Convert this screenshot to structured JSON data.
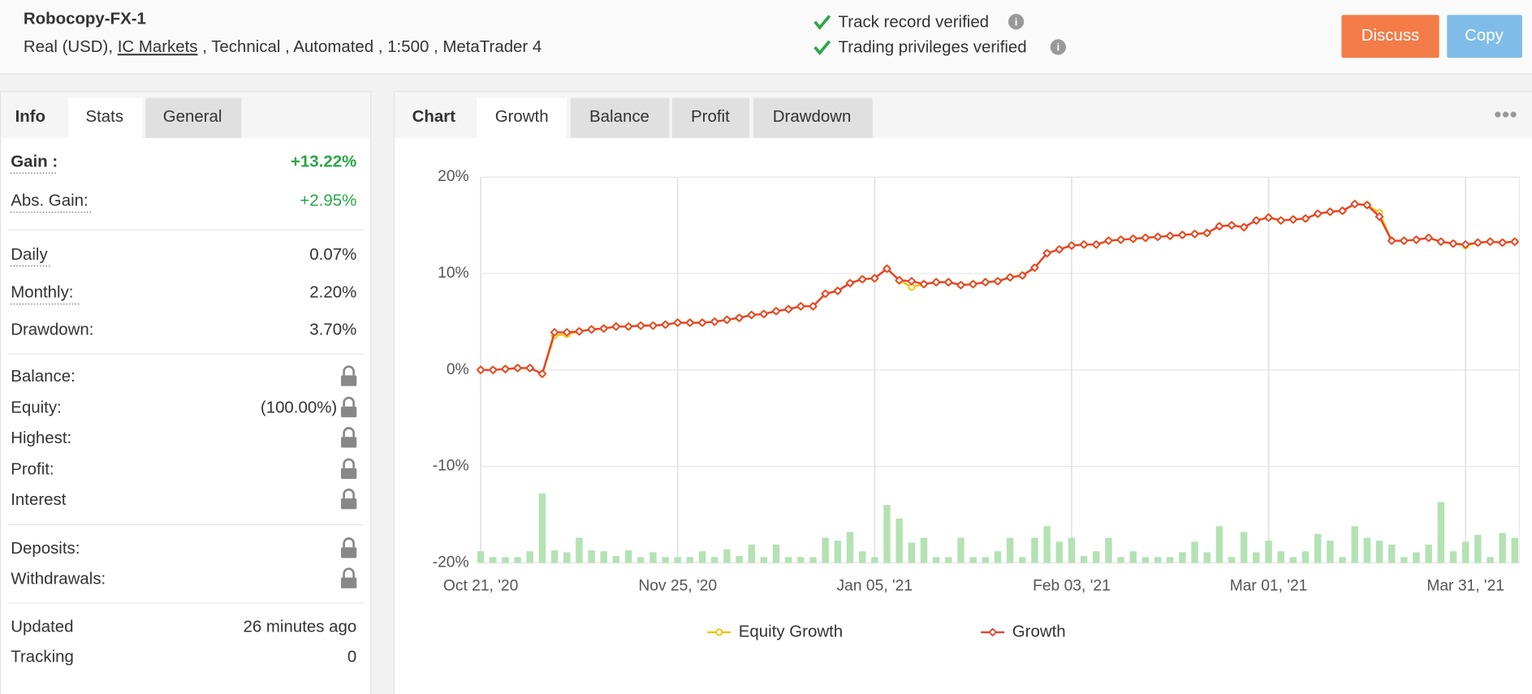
{
  "header": {
    "title": "Robocopy-FX-1",
    "account": "Real (USD),",
    "broker": "IC Markets",
    "details": ", Technical , Automated , 1:500 , MetaTrader 4",
    "verified": [
      "Track record verified",
      "Trading privileges verified"
    ],
    "buttons": [
      "Discuss",
      "Copy"
    ]
  },
  "stats": {
    "tabs": [
      "Info",
      "Stats",
      "General"
    ],
    "rows": [
      {
        "label": "Gain :",
        "value": "+13.22%"
      },
      {
        "label": "Abs. Gain:",
        "value": "+2.95%"
      },
      {
        "label": "Daily",
        "value": "0.07%"
      },
      {
        "label": "Monthly:",
        "value": "2.20%"
      },
      {
        "label": "Drawdown:",
        "value": "3.70%"
      },
      {
        "label": "Balance:",
        "locked": true
      },
      {
        "label": "Equity:",
        "value": "(100.00%)",
        "locked": true
      },
      {
        "label": "Highest:",
        "locked": true
      },
      {
        "label": "Profit:",
        "locked": true
      },
      {
        "label": "Interest",
        "locked": true
      },
      {
        "label": "Deposits:",
        "locked": true
      },
      {
        "label": "Withdrawals:",
        "locked": true
      },
      {
        "label": "Updated",
        "value": "26 minutes ago"
      },
      {
        "label": "Tracking",
        "value": "0"
      }
    ]
  },
  "chart_tabs": [
    "Chart",
    "Growth",
    "Balance",
    "Profit",
    "Drawdown"
  ],
  "chart_data": {
    "type": "line",
    "categories": [
      "Oct 21, '20",
      null,
      null,
      null,
      null,
      null,
      null,
      null,
      null,
      null,
      null,
      null,
      null,
      null,
      null,
      null,
      "Nov 25, '20",
      null,
      null,
      null,
      null,
      null,
      null,
      null,
      null,
      null,
      null,
      null,
      null,
      null,
      null,
      null,
      "Jan 05, '21",
      null,
      null,
      null,
      null,
      null,
      null,
      null,
      null,
      null,
      null,
      null,
      null,
      null,
      null,
      null,
      "Feb 03, '21",
      null,
      null,
      null,
      null,
      null,
      null,
      null,
      null,
      null,
      null,
      null,
      null,
      null,
      null,
      null,
      "Mar 01, '21",
      null,
      null,
      null,
      null,
      null,
      null,
      null,
      null,
      null,
      null,
      null,
      null,
      null,
      null,
      null,
      "Mar 31, '21",
      null,
      null,
      null,
      null
    ],
    "ylim": [
      -20,
      20
    ],
    "yticks": [
      {
        "value": -20,
        "label": "-20%"
      },
      {
        "value": -10,
        "label": "-10%"
      },
      {
        "value": 0,
        "label": "0%"
      },
      {
        "value": 10,
        "label": "10%"
      },
      {
        "value": 20,
        "label": "20%"
      }
    ],
    "grid": true,
    "series": [
      {
        "name": "Equity Growth",
        "color": "#f2c200",
        "values": [
          0,
          0,
          0.1,
          0.2,
          0.2,
          -0.4,
          3.6,
          3.7,
          4.0,
          4.2,
          4.3,
          4.5,
          4.5,
          4.6,
          4.6,
          4.7,
          4.9,
          4.9,
          4.9,
          5.0,
          5.2,
          5.4,
          5.7,
          5.8,
          6.1,
          6.3,
          6.6,
          6.6,
          7.9,
          8.2,
          9.0,
          9.4,
          9.5,
          10.5,
          9.3,
          8.6,
          8.9,
          9.1,
          9.1,
          8.8,
          8.9,
          9.1,
          9.2,
          9.6,
          9.8,
          10.6,
          12.1,
          12.5,
          12.9,
          13.0,
          13.0,
          13.4,
          13.5,
          13.6,
          13.7,
          13.8,
          13.9,
          14.0,
          14.1,
          14.2,
          14.9,
          15.0,
          14.8,
          15.5,
          15.8,
          15.5,
          15.6,
          15.7,
          16.2,
          16.4,
          16.5,
          17.2,
          17.1,
          16.3,
          13.4,
          13.4,
          13.5,
          13.7,
          13.3,
          13.1,
          12.9,
          13.2,
          13.3,
          13.2,
          13.3
        ]
      },
      {
        "name": "Growth",
        "color": "#e8412c",
        "values": [
          0,
          0,
          0.1,
          0.2,
          0.2,
          -0.4,
          3.9,
          3.9,
          4.0,
          4.2,
          4.3,
          4.5,
          4.5,
          4.6,
          4.6,
          4.7,
          4.9,
          4.9,
          4.9,
          5.0,
          5.2,
          5.4,
          5.7,
          5.8,
          6.1,
          6.3,
          6.6,
          6.6,
          7.9,
          8.2,
          9.0,
          9.4,
          9.5,
          10.5,
          9.3,
          9.2,
          8.9,
          9.1,
          9.1,
          8.8,
          8.9,
          9.1,
          9.2,
          9.6,
          9.8,
          10.6,
          12.1,
          12.5,
          12.9,
          13.0,
          13.0,
          13.4,
          13.5,
          13.6,
          13.7,
          13.8,
          13.9,
          14.0,
          14.1,
          14.2,
          14.9,
          15.0,
          14.8,
          15.5,
          15.8,
          15.5,
          15.6,
          15.7,
          16.2,
          16.4,
          16.5,
          17.2,
          17.1,
          15.9,
          13.4,
          13.4,
          13.5,
          13.7,
          13.3,
          13.1,
          13.0,
          13.2,
          13.3,
          13.2,
          13.3
        ]
      },
      {
        "type": "bar",
        "color": "#b3e2b3",
        "values": [
          -18.8,
          -19.4,
          -19.4,
          -19.4,
          -18.8,
          -12.8,
          -18.7,
          -18.9,
          -17.4,
          -18.7,
          -18.8,
          -19.3,
          -18.7,
          -19.4,
          -18.9,
          -19.4,
          -19.4,
          -19.4,
          -18.8,
          -19.4,
          -18.6,
          -19.3,
          -18.1,
          -19.4,
          -18.1,
          -19.4,
          -19.4,
          -19.4,
          -17.4,
          -17.7,
          -16.8,
          -18.8,
          -19.4,
          -14.0,
          -15.4,
          -17.9,
          -17.4,
          -19.4,
          -19.4,
          -17.4,
          -19.4,
          -19.4,
          -18.8,
          -17.4,
          -19.4,
          -17.4,
          -16.2,
          -17.8,
          -17.4,
          -19.3,
          -18.8,
          -17.4,
          -19.4,
          -18.8,
          -19.4,
          -19.4,
          -19.4,
          -18.9,
          -17.8,
          -18.9,
          -16.2,
          -19.4,
          -16.8,
          -18.9,
          -17.7,
          -18.8,
          -19.4,
          -18.8,
          -17.0,
          -17.7,
          -19.4,
          -16.2,
          -17.4,
          -17.7,
          -18.1,
          -19.4,
          -18.9,
          -18.1,
          -13.7,
          -18.8,
          -17.8,
          -17.1,
          -19.4,
          -16.9,
          -17.4
        ]
      }
    ]
  }
}
